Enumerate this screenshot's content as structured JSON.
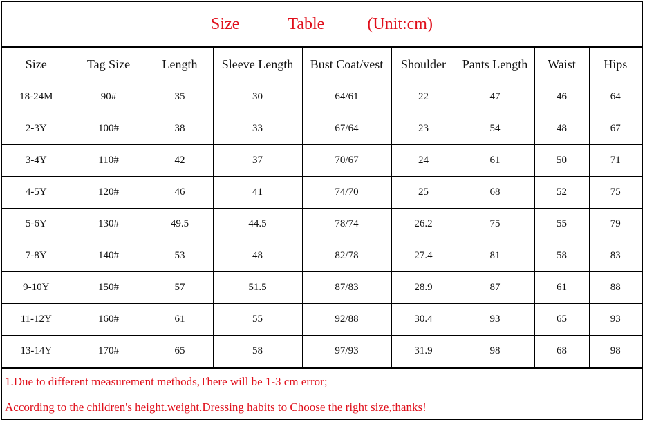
{
  "title": {
    "word1": "Size",
    "word2": "Table",
    "unit": "(Unit:cm)"
  },
  "columns": [
    "Size",
    "Tag Size",
    "Length",
    "Sleeve Length",
    "Bust Coat/vest",
    "Shoulder",
    "Pants  Length",
    "Waist",
    "Hips"
  ],
  "rows": [
    [
      "18-24M",
      "90#",
      "35",
      "30",
      "64/61",
      "22",
      "47",
      "46",
      "64"
    ],
    [
      "2-3Y",
      "100#",
      "38",
      "33",
      "67/64",
      "23",
      "54",
      "48",
      "67"
    ],
    [
      "3-4Y",
      "110#",
      "42",
      "37",
      "70/67",
      "24",
      "61",
      "50",
      "71"
    ],
    [
      "4-5Y",
      "120#",
      "46",
      "41",
      "74/70",
      "25",
      "68",
      "52",
      "75"
    ],
    [
      "5-6Y",
      "130#",
      "49.5",
      "44.5",
      "78/74",
      "26.2",
      "75",
      "55",
      "79"
    ],
    [
      "7-8Y",
      "140#",
      "53",
      "48",
      "82/78",
      "27.4",
      "81",
      "58",
      "83"
    ],
    [
      "9-10Y",
      "150#",
      "57",
      "51.5",
      "87/83",
      "28.9",
      "87",
      "61",
      "88"
    ],
    [
      "11-12Y",
      "160#",
      "61",
      "55",
      "92/88",
      "30.4",
      "93",
      "65",
      "93"
    ],
    [
      "13-14Y",
      "170#",
      "65",
      "58",
      "97/93",
      "31.9",
      "98",
      "68",
      "98"
    ]
  ],
  "notes": [
    "1.Due to different measurement methods,There will be 1-3 cm error;",
    "According to the children's height.weight.Dressing habits to Choose the right size,thanks!"
  ],
  "colors": {
    "accent_red": "#e0101c",
    "border": "#000000"
  }
}
